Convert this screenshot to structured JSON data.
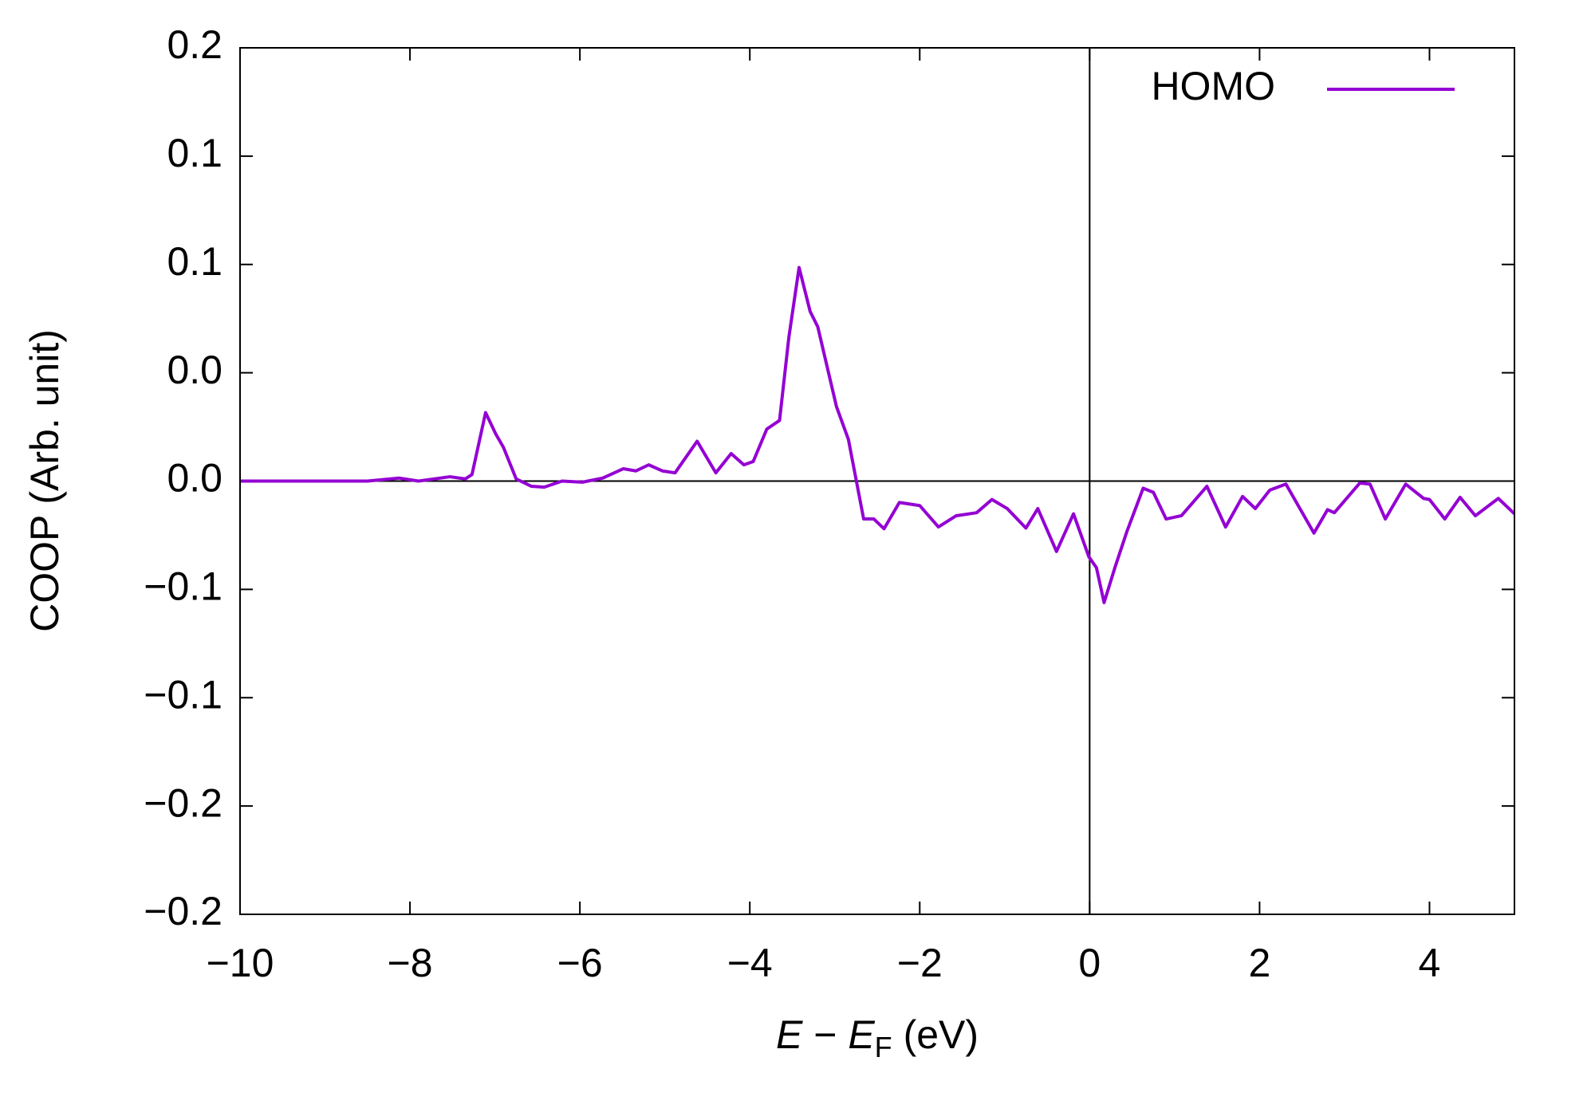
{
  "chart_data": {
    "type": "line",
    "ylabel": "COOP (Arb. unit)",
    "xlabel_parts": [
      "E",
      " − ",
      "E",
      "F",
      " (eV)"
    ],
    "xlim": [
      -10,
      5
    ],
    "ylim": [
      -0.2,
      0.2
    ],
    "xticks": [
      {
        "value": -10,
        "label": "−10"
      },
      {
        "value": -8,
        "label": "−8"
      },
      {
        "value": -6,
        "label": "−6"
      },
      {
        "value": -4,
        "label": "−4"
      },
      {
        "value": -2,
        "label": "−2"
      },
      0,
      2,
      4
    ],
    "yticks": [
      {
        "value": -0.2,
        "label": "−0.2"
      },
      {
        "value": -0.15,
        "label": "−0.2"
      },
      {
        "value": -0.1,
        "label": "−0.1"
      },
      {
        "value": -0.05,
        "label": "−0.1"
      },
      {
        "value": 0,
        "label": "0.0"
      },
      {
        "value": 0.05,
        "label": "0.0"
      },
      {
        "value": 0.1,
        "label": "0.1"
      },
      {
        "value": 0.15,
        "label": "0.1"
      },
      0.2
    ],
    "zero_lines": true,
    "legend": "top right",
    "x": [
      -10,
      -8.5,
      -8.13,
      -7.9,
      -7.53,
      -7.35,
      -7.27,
      -7.11,
      -6.99,
      -6.9,
      -6.75,
      -6.57,
      -6.42,
      -6.21,
      -5.97,
      -5.73,
      -5.49,
      -5.34,
      -5.19,
      -5.03,
      -4.88,
      -4.62,
      -4.4,
      -4.22,
      -4.07,
      -3.96,
      -3.8,
      -3.65,
      -3.54,
      -3.42,
      -3.29,
      -3.2,
      -2.98,
      -2.84,
      -2.66,
      -2.54,
      -2.42,
      -2.24,
      -2.0,
      -1.78,
      -1.57,
      -1.33,
      -1.15,
      -0.97,
      -0.75,
      -0.61,
      -0.39,
      -0.19,
      -0.01,
      0.08,
      0.17,
      0.3,
      0.44,
      0.63,
      0.75,
      0.9,
      1.08,
      1.38,
      1.6,
      1.8,
      1.95,
      2.12,
      2.31,
      2.64,
      2.8,
      2.88,
      3.18,
      3.3,
      3.48,
      3.72,
      3.93,
      4.0,
      4.18,
      4.36,
      4.54,
      4.81,
      5.0
    ],
    "series": [
      {
        "name": "HOMO",
        "color": "#9400d3",
        "values": [
          0,
          0,
          0.0014,
          0,
          0.002,
          0.001,
          0.003,
          0.0316,
          0.0217,
          0.0156,
          0.001,
          -0.0024,
          -0.0028,
          0,
          -0.0005,
          0.0014,
          0.0057,
          0.0047,
          0.0075,
          0.0047,
          0.0038,
          0.0184,
          0.0038,
          0.0127,
          0.0075,
          0.009,
          0.024,
          0.028,
          0.0665,
          0.0986,
          0.0783,
          0.0712,
          0.0344,
          0.0193,
          -0.0175,
          -0.0175,
          -0.022,
          -0.0099,
          -0.0113,
          -0.0212,
          -0.016,
          -0.0146,
          -0.0085,
          -0.0127,
          -0.0217,
          -0.0127,
          -0.0325,
          -0.0151,
          -0.0349,
          -0.04,
          -0.0561,
          -0.0396,
          -0.0231,
          -0.0033,
          -0.0052,
          -0.0175,
          -0.016,
          -0.0024,
          -0.0212,
          -0.0071,
          -0.0127,
          -0.0042,
          -0.0014,
          -0.024,
          -0.0132,
          -0.0146,
          -0.0009,
          -0.0014,
          -0.0175,
          -0.0014,
          -0.008,
          -0.0085,
          -0.0175,
          -0.0075,
          -0.016,
          -0.008,
          -0.0151
        ]
      }
    ]
  }
}
